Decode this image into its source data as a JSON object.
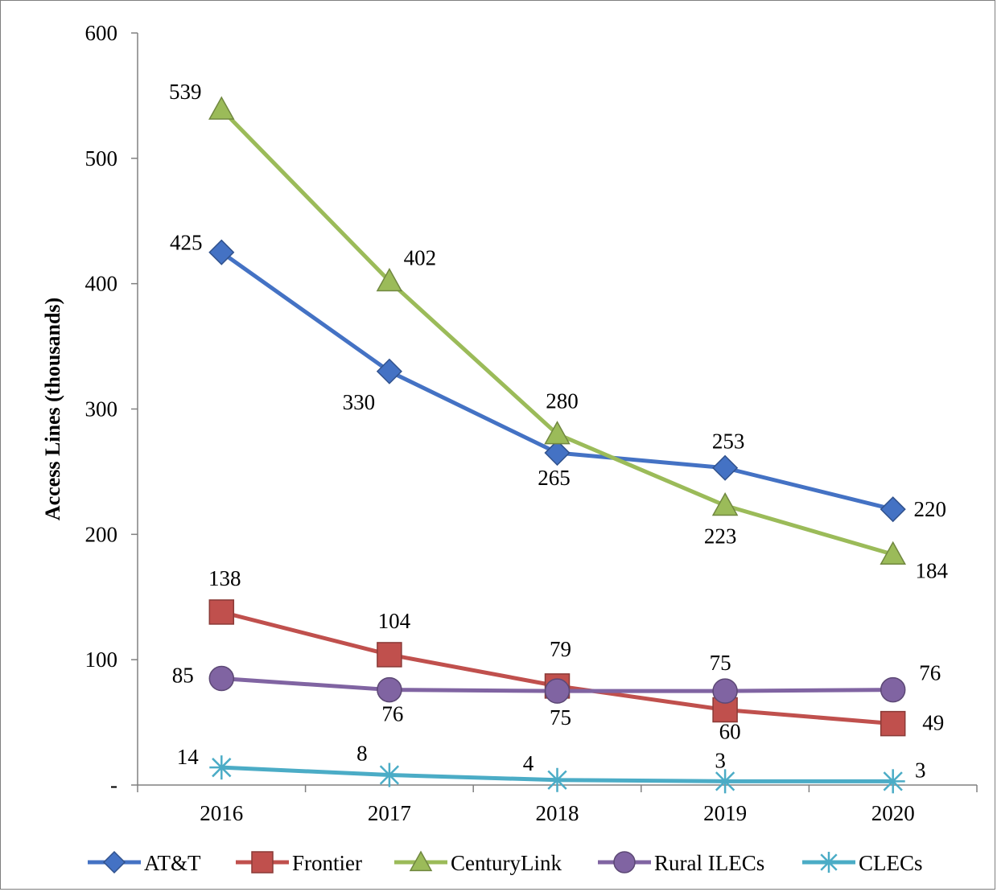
{
  "chart_data": {
    "type": "line",
    "title": "",
    "xlabel": "",
    "ylabel": "Access Lines (thousands)",
    "categories": [
      "2016",
      "2017",
      "2018",
      "2019",
      "2020"
    ],
    "ylim": [
      0,
      600
    ],
    "yticks": [
      {
        "value": 0,
        "label": "-"
      },
      {
        "value": 100,
        "label": "100"
      },
      {
        "value": 200,
        "label": "200"
      },
      {
        "value": 300,
        "label": "300"
      },
      {
        "value": 400,
        "label": "400"
      },
      {
        "value": 500,
        "label": "500"
      },
      {
        "value": 600,
        "label": "600"
      }
    ],
    "grid": false,
    "legend_position": "bottom",
    "series": [
      {
        "name": "AT&T",
        "marker": "diamond",
        "color": "#4472C4",
        "values": [
          425,
          330,
          265,
          253,
          220
        ]
      },
      {
        "name": "Frontier",
        "marker": "square",
        "color": "#C0504D",
        "values": [
          138,
          104,
          79,
          60,
          49
        ]
      },
      {
        "name": "CenturyLink",
        "marker": "triangle",
        "color": "#9BBB59",
        "values": [
          539,
          402,
          280,
          223,
          184
        ]
      },
      {
        "name": "Rural ILECs",
        "marker": "circle",
        "color": "#8064A2",
        "values": [
          85,
          76,
          75,
          75,
          76
        ]
      },
      {
        "name": "CLECs",
        "marker": "asterisk",
        "color": "#4BACC6",
        "values": [
          14,
          8,
          4,
          3,
          3
        ]
      }
    ]
  }
}
